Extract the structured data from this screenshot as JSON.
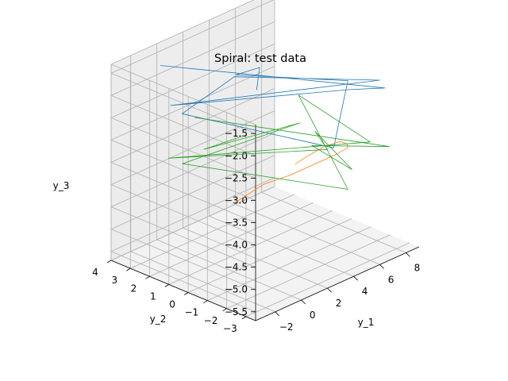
{
  "chart_data": {
    "type": "line",
    "projection": "3d",
    "title": "Spiral: test data",
    "xlabel": "y_1",
    "ylabel": "y_2",
    "zlabel": "y_3",
    "xlim": [
      -3.5,
      9
    ],
    "ylim": [
      -3.5,
      4
    ],
    "zlim": [
      -5.7,
      -1.3
    ],
    "x_ticks": [
      -2,
      0,
      2,
      4,
      6,
      8
    ],
    "x_tick_labels": [
      "−2",
      "0",
      "2",
      "4",
      "6",
      "8"
    ],
    "y_ticks": [
      -3,
      -2,
      -1,
      0,
      1,
      2,
      3,
      4
    ],
    "y_tick_labels": [
      "−3",
      "−2",
      "−1",
      "0",
      "1",
      "2",
      "3",
      "4"
    ],
    "z_ticks": [
      -5.5,
      -5.0,
      -4.5,
      -4.0,
      -3.5,
      -3.0,
      -2.5,
      -2.0,
      -1.5
    ],
    "z_tick_labels": [
      "−5.5",
      "−5.0",
      "−4.5",
      "−4.0",
      "−3.5",
      "−3.0",
      "−2.5",
      "−2.0",
      "−1.5"
    ],
    "grid": true,
    "series": [
      {
        "color": "#1f77b4",
        "points": [
          [
            -1.8,
            2.6,
            -1.3
          ],
          [
            8.0,
            -2.4,
            -2.2
          ],
          [
            3.8,
            -3.4,
            -1.5
          ],
          [
            -2.2,
            1.8,
            -2.0
          ],
          [
            8.5,
            -1.8,
            -2.2
          ],
          [
            1.5,
            1.0,
            -1.7
          ],
          [
            -2.5,
            1.0,
            -2.0
          ],
          [
            3.2,
            -3.0,
            -2.8
          ],
          [
            6.5,
            -1.5,
            -2.0
          ],
          [
            2.5,
            1.6,
            -1.9
          ],
          [
            5.2,
            2.2,
            -2.2
          ],
          [
            3.5,
            1.2,
            -2.3
          ]
        ]
      },
      {
        "color": "#ff7f0e",
        "points": [
          [
            3.2,
            2.0,
            -4.9
          ],
          [
            4.5,
            1.5,
            -4.6
          ],
          [
            5.5,
            0.8,
            -4.4
          ],
          [
            6.2,
            0.0,
            -4.1
          ],
          [
            6.6,
            -0.8,
            -3.8
          ],
          [
            6.5,
            -1.5,
            -3.5
          ],
          [
            6.0,
            -1.8,
            -3.3
          ],
          [
            5.2,
            -2.0,
            -3.1
          ],
          [
            4.5,
            -1.6,
            -3.2
          ],
          [
            3.8,
            -1.2,
            -3.4
          ],
          [
            3.5,
            -0.8,
            -3.6
          ]
        ]
      },
      {
        "color": "#2ca02c",
        "points": [
          [
            -0.8,
            1.5,
            -2.4
          ],
          [
            8.5,
            -2.3,
            -3.6
          ],
          [
            3.0,
            -2.0,
            -2.9
          ],
          [
            5.5,
            -2.4,
            -3.7
          ],
          [
            2.8,
            -2.3,
            -2.5
          ],
          [
            4.8,
            -1.6,
            -3.3
          ],
          [
            -2.2,
            1.9,
            -3.2
          ],
          [
            8.2,
            -1.5,
            -3.6
          ],
          [
            4.2,
            -0.5,
            -2.2
          ],
          [
            4.0,
            -3.2,
            -3.8
          ],
          [
            -1.0,
            2.0,
            -3.5
          ],
          [
            6.5,
            1.0,
            -3.4
          ],
          [
            3.0,
            3.6,
            -4.0
          ],
          [
            3.8,
            2.0,
            -3.5
          ]
        ]
      }
    ]
  }
}
